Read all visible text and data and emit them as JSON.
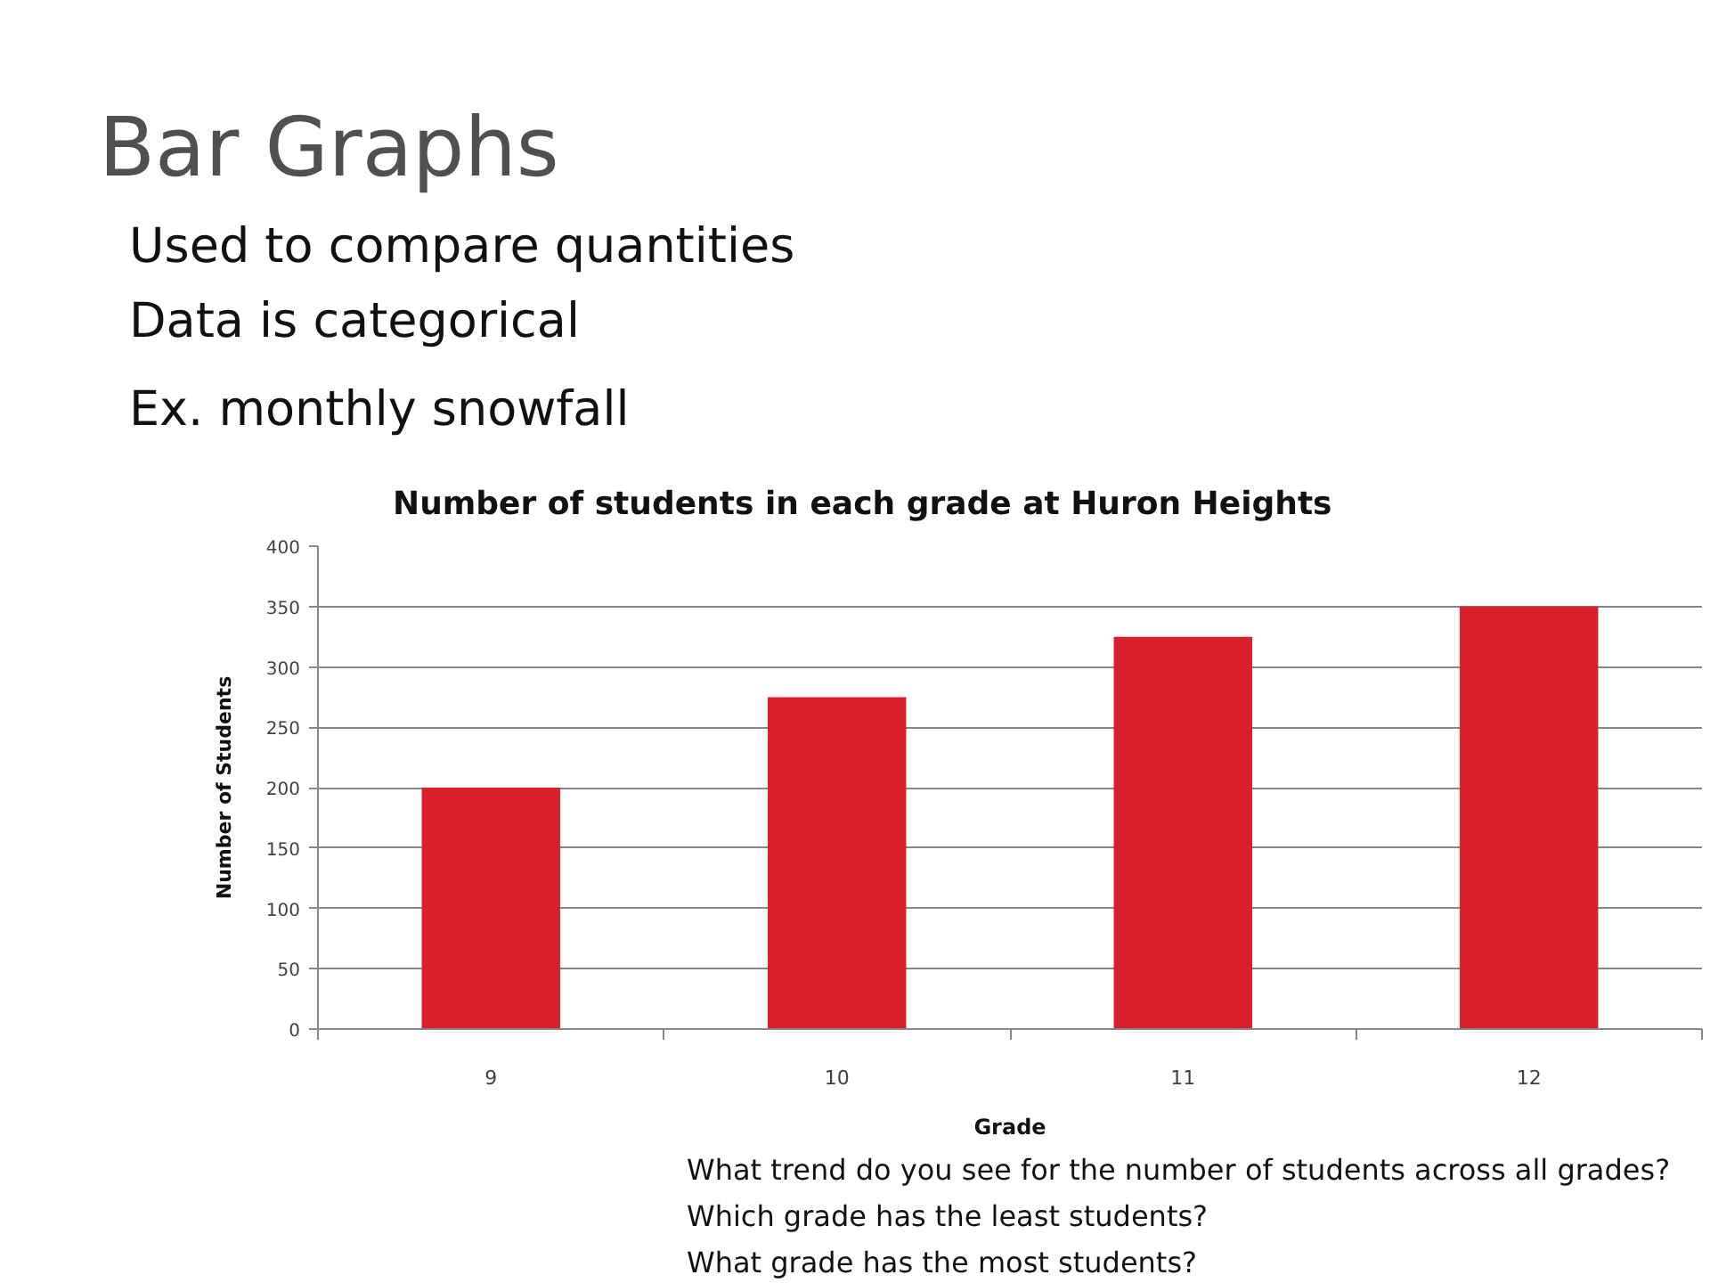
{
  "chart_data": {
    "type": "bar",
    "title": "Number of students in each grade at Huron Heights",
    "xlabel": "Grade",
    "ylabel": "Number of Students",
    "categories": [
      "9",
      "10",
      "11",
      "12"
    ],
    "values": [
      200,
      275,
      325,
      350
    ],
    "color": "#d81f2a",
    "ylim": [
      0,
      400
    ],
    "yticks": [
      0,
      50,
      100,
      150,
      200,
      250,
      300,
      350,
      400
    ],
    "grid": "y",
    "annotations": [
      "Bar Graphs",
      "Used to compare quantities",
      "Data is categorical",
      "Ex. monthly snowfall",
      "What trend do you see for the number of students across all grades?",
      "Which grade has the least students?",
      "What grade has the most students?"
    ]
  }
}
